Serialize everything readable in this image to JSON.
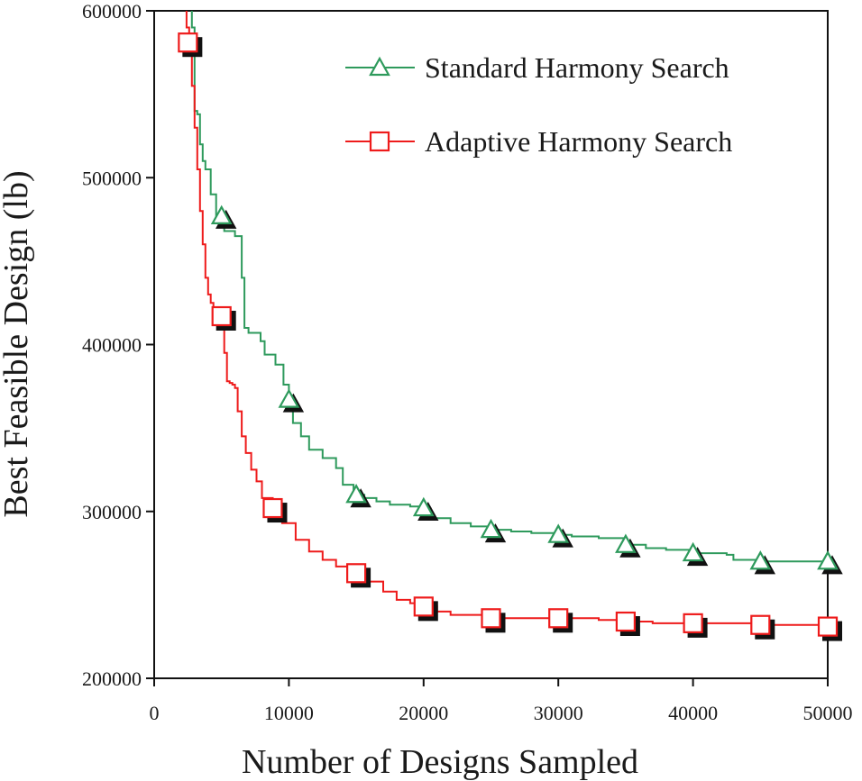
{
  "chart_data": {
    "type": "line",
    "title": "",
    "xlabel": "Number of Designs Sampled",
    "ylabel": "Best Feasible Design (lb)",
    "xlim": [
      0,
      50000
    ],
    "ylim": [
      200000,
      600000
    ],
    "xticks": [
      0,
      10000,
      20000,
      30000,
      40000,
      50000
    ],
    "xtick_labels": [
      "0",
      "10000",
      "20000",
      "30000",
      "40000",
      "50000"
    ],
    "yticks": [
      200000,
      300000,
      400000,
      500000,
      600000
    ],
    "ytick_labels": [
      "200000",
      "300000",
      "400000",
      "500000",
      "600000"
    ],
    "grid": false,
    "legend_position": "top-right",
    "series": [
      {
        "name": "Standard Harmony Search",
        "color": "#2e9a5c",
        "marker": "triangle",
        "marker_x": [
          5000,
          10000,
          15000,
          20000,
          25000,
          30000,
          35000,
          40000,
          45000,
          50000
        ],
        "marker_y": [
          477000,
          367000,
          310000,
          302000,
          289000,
          286000,
          280000,
          275000,
          270000,
          270000
        ],
        "x": [
          2400,
          2600,
          2800,
          3000,
          3200,
          3400,
          3600,
          3800,
          4200,
          4600,
          5200,
          6000,
          6500,
          6700,
          7000,
          7900,
          8200,
          9000,
          9600,
          10000,
          10300,
          10900,
          11500,
          12500,
          13500,
          14000,
          14800,
          15000,
          15600,
          16500,
          17500,
          19000,
          20000,
          20500,
          22000,
          23500,
          25000,
          26500,
          28000,
          30000,
          31000,
          33000,
          35000,
          36500,
          38000,
          40000,
          42500,
          43000,
          45000,
          50000
        ],
        "y": [
          640000,
          610000,
          590000,
          540000,
          538000,
          520000,
          510000,
          505000,
          490000,
          477000,
          468000,
          465000,
          440000,
          410000,
          407000,
          402000,
          394000,
          388000,
          376000,
          367000,
          353000,
          345000,
          337000,
          332000,
          326000,
          316000,
          313000,
          310000,
          308000,
          306000,
          304000,
          303000,
          302000,
          296000,
          293000,
          291000,
          289000,
          288000,
          287000,
          286000,
          285000,
          284000,
          280000,
          278000,
          277000,
          275000,
          274000,
          271000,
          270000,
          270000
        ]
      },
      {
        "name": "Adaptive Harmony Search",
        "color": "#ee1b1b",
        "marker": "square",
        "marker_x": [
          2500,
          5000,
          8800,
          15000,
          20000,
          25000,
          30000,
          35000,
          40000,
          45000,
          50000
        ],
        "marker_y": [
          581000,
          417000,
          302000,
          263000,
          243000,
          236000,
          236000,
          234000,
          233000,
          232000,
          231000
        ],
        "x": [
          2200,
          2400,
          2600,
          2800,
          3000,
          3200,
          3400,
          3600,
          3800,
          4000,
          4200,
          4400,
          4600,
          4800,
          5000,
          5200,
          5400,
          5600,
          5800,
          6000,
          6200,
          6500,
          6800,
          7200,
          7600,
          8000,
          8800,
          9500,
          10500,
          11500,
          12500,
          13500,
          14500,
          15000,
          16000,
          17000,
          18000,
          19000,
          20000,
          21000,
          22000,
          25000,
          30000,
          33000,
          35000,
          37000,
          40000,
          45000,
          50000
        ],
        "y": [
          610000,
          590000,
          575000,
          555000,
          530000,
          505000,
          480000,
          460000,
          440000,
          430000,
          425000,
          420000,
          418000,
          417000,
          417000,
          395000,
          378000,
          377000,
          376000,
          374000,
          360000,
          345000,
          335000,
          325000,
          318000,
          308000,
          302000,
          293000,
          283000,
          276000,
          271000,
          267000,
          264000,
          263000,
          258000,
          252000,
          247000,
          245000,
          243000,
          240000,
          238000,
          236000,
          236000,
          235000,
          234000,
          233000,
          233000,
          232000,
          231000
        ]
      }
    ]
  }
}
